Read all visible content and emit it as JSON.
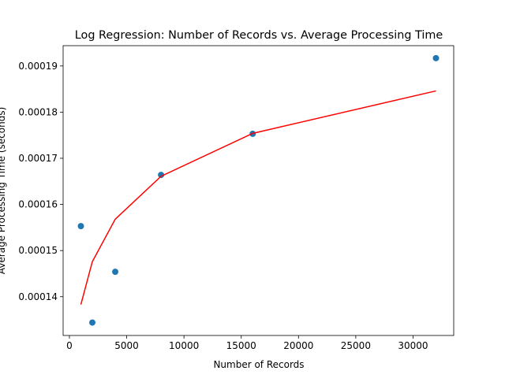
{
  "chart_data": {
    "type": "scatter",
    "title": "Log Regression: Number of Records vs. Average Processing Time",
    "x_label": "Number of Records",
    "y_label": "Average Processing Time (seconds)",
    "x": [
      1000,
      2000,
      4000,
      8000,
      16000,
      32000
    ],
    "series": [
      {
        "type": "scatter",
        "color": "#1f77b4",
        "values": [
          0.0001553,
          0.0001344,
          0.0001454,
          0.0001664,
          0.0001753,
          0.0001917
        ]
      },
      {
        "type": "line",
        "color": "#ff0000",
        "values": [
          0.0001383,
          0.0001476,
          0.0001568,
          0.0001661,
          0.0001754,
          0.0001846
        ]
      }
    ],
    "xlim": [
      -550,
      33550
    ],
    "ylim": [
      0.0001316,
      0.0001944
    ],
    "xticks": [
      0,
      5000,
      10000,
      15000,
      20000,
      25000,
      30000
    ],
    "yticks": [
      0.00014,
      0.00015,
      0.00016,
      0.00017,
      0.00018,
      0.00019
    ]
  }
}
